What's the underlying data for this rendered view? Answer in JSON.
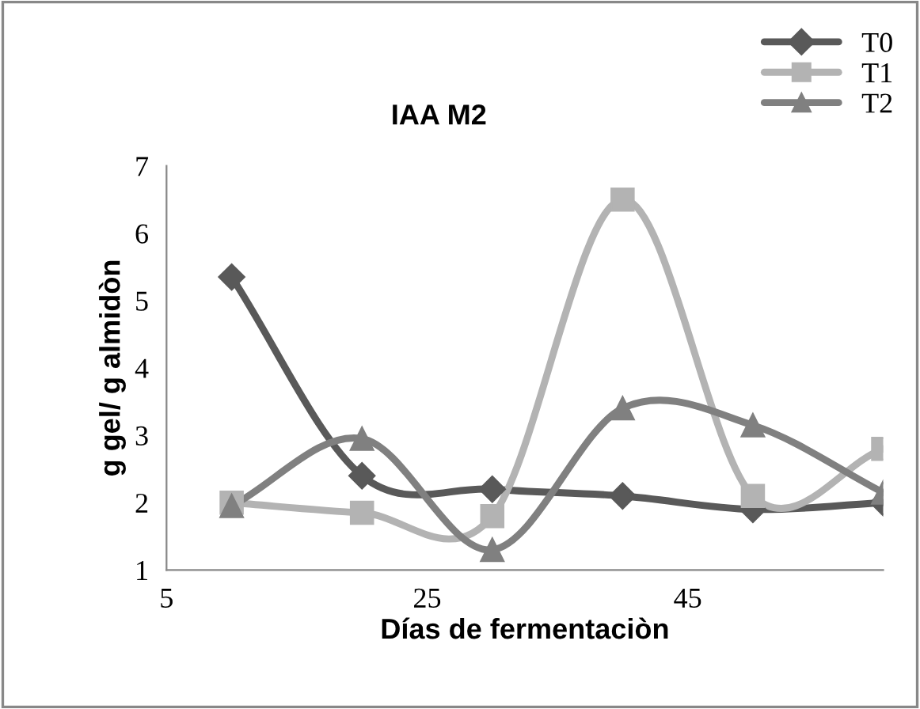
{
  "chart_data": {
    "type": "line",
    "title": "IAA M2",
    "xlabel": "Días de fermentaciòn",
    "ylabel": "g gel/ g almidòn",
    "x": [
      10,
      20,
      30,
      40,
      50,
      60
    ],
    "series": [
      {
        "name": "T0",
        "color": "#595959",
        "marker": "diamond",
        "values": [
          5.35,
          2.4,
          2.2,
          2.1,
          1.9,
          2.0
        ]
      },
      {
        "name": "T1",
        "color": "#b3b3b3",
        "marker": "square",
        "values": [
          2.0,
          1.85,
          1.8,
          6.5,
          2.1,
          2.8
        ]
      },
      {
        "name": "T2",
        "color": "#808080",
        "marker": "triangle",
        "values": [
          1.95,
          2.95,
          1.3,
          3.4,
          3.15,
          2.15
        ]
      }
    ],
    "xlim": [
      5,
      60
    ],
    "xticks": [
      5,
      25,
      45
    ],
    "ylim": [
      1,
      7
    ],
    "yticks": [
      1,
      2,
      3,
      4,
      5,
      6,
      7
    ],
    "grid": false,
    "legend": "top right",
    "line_style": "solid"
  }
}
